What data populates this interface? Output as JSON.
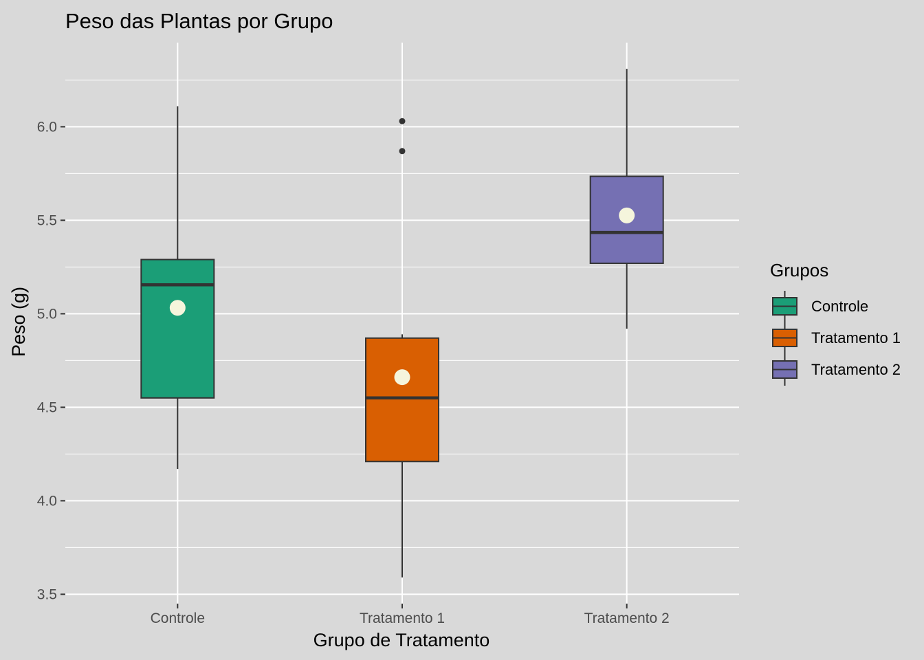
{
  "chart_data": {
    "type": "boxplot",
    "title": "Peso das Plantas por Grupo",
    "xlabel": "Grupo de Tratamento",
    "ylabel": "Peso (g)",
    "ylim": [
      3.45,
      6.45
    ],
    "yticks": [
      3.5,
      4.0,
      4.5,
      5.0,
      5.5,
      6.0
    ],
    "ytick_labels": [
      "3.5",
      "4.0",
      "4.5",
      "5.0",
      "5.5",
      "6.0"
    ],
    "grid": true,
    "legend": {
      "title": "Grupos",
      "placement": "right"
    },
    "categories": [
      "Controle",
      "Tratamento 1",
      "Tratamento 2"
    ],
    "series": [
      {
        "name": "Controle",
        "color": "#1B9E77",
        "whisker_low": 4.17,
        "q1": 4.55,
        "median": 5.155,
        "q3": 5.29,
        "whisker_high": 6.11,
        "mean": 5.032,
        "outliers": []
      },
      {
        "name": "Tratamento 1",
        "color": "#D95F02",
        "whisker_low": 3.59,
        "q1": 4.21,
        "median": 4.55,
        "q3": 4.87,
        "whisker_high": 4.89,
        "mean": 4.661,
        "outliers": [
          5.87,
          6.03
        ]
      },
      {
        "name": "Tratamento 2",
        "color": "#7570B3",
        "whisker_low": 4.92,
        "q1": 5.27,
        "median": 5.435,
        "q3": 5.735,
        "whisker_high": 6.31,
        "mean": 5.526,
        "outliers": []
      }
    ],
    "mean_marker_color": "#F5F5DC"
  }
}
